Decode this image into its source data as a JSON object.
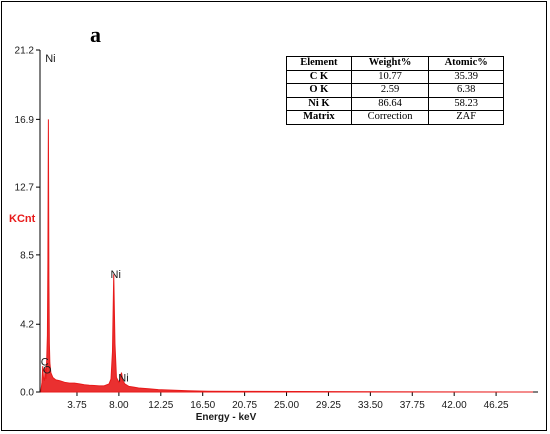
{
  "panel_label": "a",
  "table": {
    "headers": [
      "Element",
      "Weight%",
      "Atomic%"
    ],
    "rows": [
      [
        "C K",
        "10.77",
        "35.39"
      ],
      [
        "O K",
        "2.59",
        "6.38"
      ],
      [
        "Ni K",
        "86.64",
        "58.23"
      ],
      [
        "Matrix",
        "Correction",
        "ZAF"
      ]
    ]
  },
  "chart_data": {
    "type": "line",
    "title": "",
    "xlabel": "Energy - keV",
    "ylabel": "KCnt",
    "xlim": [
      0,
      50.5
    ],
    "ylim": [
      0,
      21.2
    ],
    "x_ticks": [
      "3.75",
      "8.00",
      "12.25",
      "16.50",
      "20.75",
      "25.00",
      "29.25",
      "33.50",
      "37.75",
      "42.00",
      "46.25"
    ],
    "x_tick_values": [
      3.75,
      8.0,
      12.25,
      16.5,
      20.75,
      25.0,
      29.25,
      33.5,
      37.75,
      42.0,
      46.25
    ],
    "y_ticks": [
      "0.0",
      "4.2",
      "8.5",
      "12.7",
      "16.9",
      "21.2"
    ],
    "y_tick_values": [
      0.0,
      4.2,
      8.5,
      12.7,
      16.9,
      21.2
    ],
    "grid": false,
    "line_color": "#e81a1a",
    "series": [
      {
        "x": [
          0.1,
          0.2,
          0.277,
          0.35,
          0.45,
          0.525,
          0.6,
          0.68,
          0.75,
          0.8,
          0.851,
          0.9,
          0.95,
          1.0,
          1.1,
          1.3,
          1.6,
          2.0,
          2.5,
          3.0,
          3.5,
          4.0,
          4.5,
          5.0,
          5.5,
          6.0,
          6.5,
          7.0,
          7.2,
          7.35,
          7.478,
          7.6,
          7.75,
          8.0,
          8.1,
          8.265,
          8.4,
          8.6,
          9.0,
          9.5,
          10.0,
          11.0,
          12.0,
          13.0,
          14.0,
          15.0,
          16.0,
          17.0,
          20.0,
          30.0,
          40.0,
          50.0
        ],
        "y": [
          0.1,
          0.6,
          1.6,
          0.9,
          0.7,
          1.5,
          0.8,
          2.0,
          3.5,
          8.0,
          16.9,
          7.0,
          3.0,
          1.8,
          1.2,
          0.9,
          0.75,
          0.7,
          0.6,
          0.55,
          0.55,
          0.5,
          0.45,
          0.42,
          0.4,
          0.38,
          0.38,
          0.5,
          0.8,
          2.5,
          7.3,
          3.0,
          0.9,
          0.6,
          0.8,
          1.2,
          0.7,
          0.5,
          0.35,
          0.3,
          0.25,
          0.2,
          0.15,
          0.12,
          0.1,
          0.08,
          0.06,
          0.05,
          0.04,
          0.02,
          0.01,
          0.0
        ]
      }
    ],
    "annotations": [
      {
        "text": "Ni",
        "x": 0.851,
        "y": 21.2
      },
      {
        "text": "C",
        "x": 0.277,
        "y": 2.4
      },
      {
        "text": "O",
        "x": 0.525,
        "y": 1.9
      },
      {
        "text": "Ni",
        "x": 7.478,
        "y": 7.8
      },
      {
        "text": "Ni",
        "x": 8.265,
        "y": 1.4
      }
    ]
  }
}
